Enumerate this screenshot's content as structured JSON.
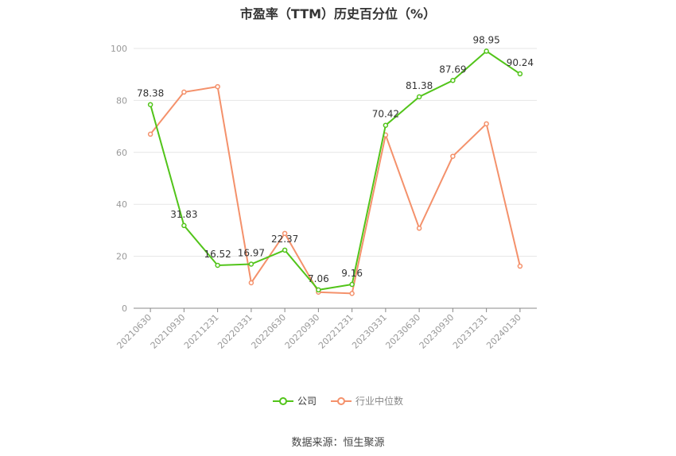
{
  "chart_data": {
    "type": "line",
    "title": "市盈率（TTM）历史百分位（%）",
    "categories": [
      "20210630",
      "20210930",
      "20211231",
      "20220331",
      "20220630",
      "20220930",
      "20221231",
      "20230331",
      "20230630",
      "20230930",
      "20231231",
      "20240130"
    ],
    "ylim": [
      0,
      100
    ],
    "yticks": [
      0,
      20,
      40,
      60,
      80,
      100
    ],
    "grid": true,
    "legend_position": "bottom",
    "series": [
      {
        "name": "公司",
        "color": "#52c41a",
        "values": [
          78.38,
          31.83,
          16.52,
          16.97,
          22.37,
          7.06,
          9.16,
          70.42,
          81.38,
          87.69,
          98.95,
          90.24
        ],
        "labels": [
          "78.38",
          "31.83",
          "16.52",
          "16.97",
          "22.37",
          "7.06",
          "9.16",
          "70.42",
          "81.38",
          "87.69",
          "98.95",
          "90.24"
        ]
      },
      {
        "name": "行业中位数",
        "color": "#f4916b",
        "values": [
          67,
          83.2,
          85.3,
          9.8,
          28.8,
          6.2,
          5.7,
          66.7,
          30.8,
          58.5,
          71,
          16.2
        ]
      }
    ]
  },
  "source": "数据来源：恒生聚源"
}
